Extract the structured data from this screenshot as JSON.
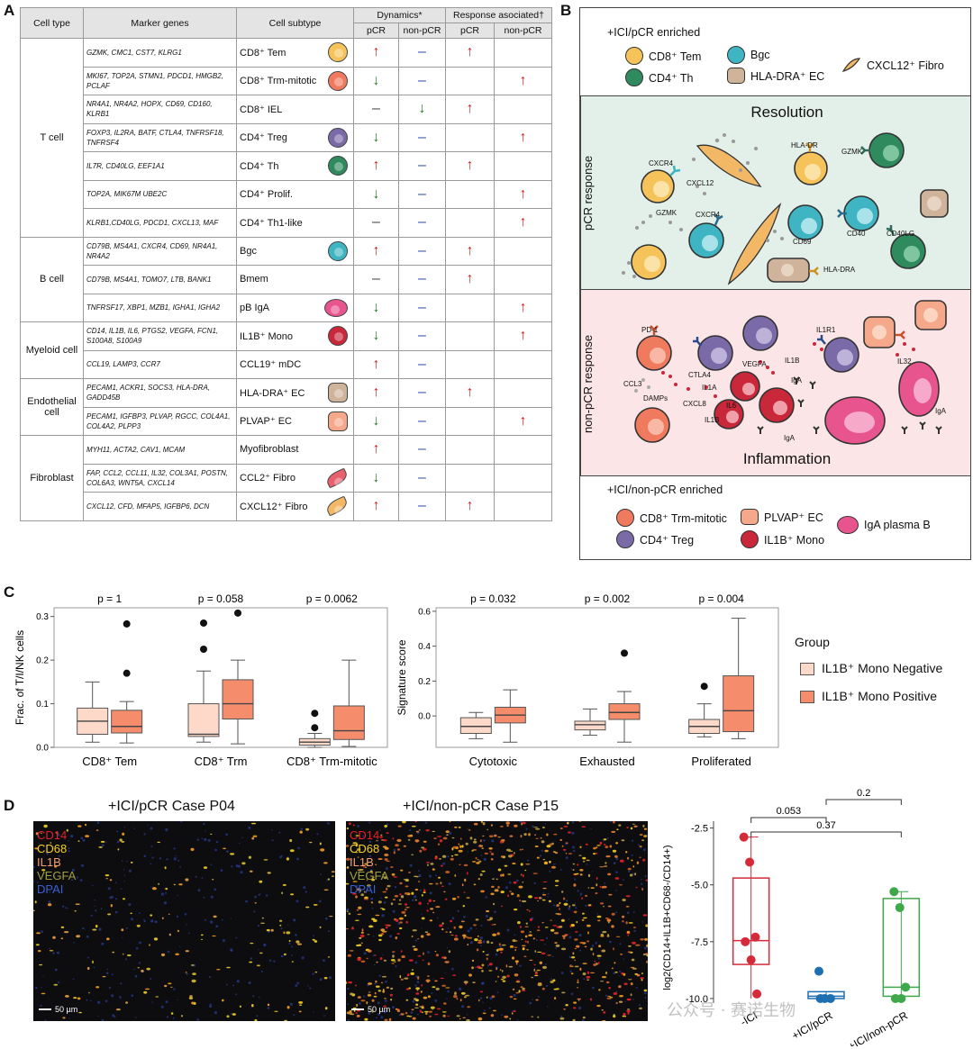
{
  "panelA": {
    "letter": "A",
    "header": {
      "cell_type": "Cell type",
      "marker_genes": "Marker genes",
      "cell_subtype": "Cell subtype",
      "dynamics": "Dynamics*",
      "response": "Response asociated†",
      "pcr": "pCR",
      "non_pcr": "non-pCR"
    },
    "groups": [
      {
        "type": "T cell",
        "rows": [
          {
            "markers": "GZMK, CMC1, CST7, KLRG1",
            "subtype": "CD8⁺ Tem",
            "icon": "cd8-tem-cell-icon",
            "color": "#f6c35b",
            "dyn_pcr": "↑",
            "dyn_npcr": "–",
            "res_pcr": "↑",
            "res_npcr": ""
          },
          {
            "markers": "MKI67, TOP2A, STMN1, PDCD1, HMGB2, PCLAF",
            "subtype": "CD8⁺ Trm-mitotic",
            "icon": "cd8-trm-mitotic-cell-icon",
            "color": "#f07a5e",
            "dyn_pcr": "↓",
            "dyn_npcr": "–",
            "res_pcr": "",
            "res_npcr": "↑"
          },
          {
            "markers": "NR4A1, NR4A2, HOPX, CD69, CD160, KLRB1",
            "subtype": "CD8⁺ IEL",
            "icon": "",
            "color": "",
            "dyn_pcr": "–",
            "dyn_npcr": "↓",
            "res_pcr": "↑",
            "res_npcr": ""
          },
          {
            "markers": "FOXP3, IL2RA, BATF, CTLA4, TNFRSF18, TNFRSF4",
            "subtype": "CD4⁺ Treg",
            "icon": "cd4-treg-cell-icon",
            "color": "#7a6aa8",
            "dyn_pcr": "↓",
            "dyn_npcr": "–",
            "res_pcr": "",
            "res_npcr": "↑"
          },
          {
            "markers": "IL7R, CD40LG, EEF1A1",
            "subtype": "CD4⁺ Th",
            "icon": "cd4-th-cell-icon",
            "color": "#2f8a5e",
            "dyn_pcr": "↑",
            "dyn_npcr": "–",
            "res_pcr": "↑",
            "res_npcr": ""
          },
          {
            "markers": "TOP2A, MIK67M UBE2C",
            "subtype": "CD4⁺ Prolif.",
            "icon": "",
            "color": "",
            "dyn_pcr": "↓",
            "dyn_npcr": "–",
            "res_pcr": "",
            "res_npcr": "↑"
          },
          {
            "markers": "KLRB1,CD40LG, PDCD1, CXCL13, MAF",
            "subtype": "CD4⁺ Th1-like",
            "icon": "",
            "color": "",
            "dyn_pcr": "–",
            "dyn_npcr": "–",
            "res_pcr": "",
            "res_npcr": "↑"
          }
        ]
      },
      {
        "type": "B cell",
        "rows": [
          {
            "markers": "CD79B, MS4A1, CXCR4, CD69, NR4A1, NR4A2",
            "subtype": "Bgc",
            "icon": "bgc-cell-icon",
            "color": "#3fb5c4",
            "dyn_pcr": "↑",
            "dyn_npcr": "–",
            "res_pcr": "↑",
            "res_npcr": ""
          },
          {
            "markers": "CD79B, MS4A1, TOMO7, LTB, BANK1",
            "subtype": "Bmem",
            "icon": "",
            "color": "",
            "dyn_pcr": "–",
            "dyn_npcr": "–",
            "res_pcr": "↑",
            "res_npcr": ""
          },
          {
            "markers": "TNFRSF17, XBP1, MZB1, IGHA1, IGHA2",
            "subtype": "pB IgA",
            "icon": "pb-iga-cell-icon",
            "color": "#e8558e",
            "dyn_pcr": "↓",
            "dyn_npcr": "–",
            "res_pcr": "",
            "res_npcr": "↑"
          }
        ]
      },
      {
        "type": "Myeloid cell",
        "rows": [
          {
            "markers": "CD14, IL1B, IL6, PTGS2, VEGFA, FCN1, S100A8, S100A9",
            "subtype": "IL1B⁺ Mono",
            "icon": "il1b-mono-cell-icon",
            "color": "#c8283a",
            "dyn_pcr": "↓",
            "dyn_npcr": "–",
            "res_pcr": "",
            "res_npcr": "↑"
          },
          {
            "markers": "CCL19, LAMP3, CCR7",
            "subtype": "CCL19⁺ mDC",
            "icon": "",
            "color": "",
            "dyn_pcr": "↑",
            "dyn_npcr": "–",
            "res_pcr": "",
            "res_npcr": ""
          }
        ]
      },
      {
        "type": "Endothelial cell",
        "rows": [
          {
            "markers": "PECAM1, ACKR1, SOCS3, HLA-DRA, GADD45B",
            "subtype": "HLA-DRA⁺ EC",
            "icon": "hla-dra-ec-cell-icon",
            "color": "#cfb39a",
            "dyn_pcr": "↑",
            "dyn_npcr": "–",
            "res_pcr": "↑",
            "res_npcr": ""
          },
          {
            "markers": "PECAM1, IGFBP3, PLVAP, RGCC, COL4A1, COL4A2, PLPP3",
            "subtype": "PLVAP⁺ EC",
            "icon": "plvap-ec-cell-icon",
            "color": "#f6a88a",
            "dyn_pcr": "↓",
            "dyn_npcr": "–",
            "res_pcr": "",
            "res_npcr": "↑"
          }
        ]
      },
      {
        "type": "Fibroblast",
        "rows": [
          {
            "markers": "MYH11, ACTA2, CAV1, MCAM",
            "subtype": "Myofibroblast",
            "icon": "",
            "color": "",
            "dyn_pcr": "↑",
            "dyn_npcr": "–",
            "res_pcr": "",
            "res_npcr": ""
          },
          {
            "markers": "FAP, CCL2, CCL11, IL32, COL3A1, POSTN, COL6A3, WNT5A, CXCL14",
            "subtype": "CCL2⁺ Fibro",
            "icon": "ccl2-fibro-cell-icon",
            "color": "#e8606e",
            "dyn_pcr": "↓",
            "dyn_npcr": "–",
            "res_pcr": "",
            "res_npcr": ""
          },
          {
            "markers": "CXCL12, CFD, MFAP5, IGFBP6, DCN",
            "subtype": "CXCL12⁺ Fibro",
            "icon": "cxcl12-fibro-cell-icon",
            "color": "#f2b866",
            "dyn_pcr": "↑",
            "dyn_npcr": "–",
            "res_pcr": "↑",
            "res_npcr": ""
          }
        ]
      }
    ]
  },
  "panelB": {
    "letter": "B",
    "top_legend_title": "+ICI/pCR enriched",
    "top_legend": [
      {
        "label": "CD8⁺ Tem",
        "color": "#f6c35b"
      },
      {
        "label": "Bgc",
        "color": "#3fb5c4"
      },
      {
        "label": "CXCL12⁺ Fibro",
        "color": "#f2b866"
      },
      {
        "label": "CD4⁺ Th",
        "color": "#2f8a5e"
      },
      {
        "label": "HLA-DRA⁺ EC",
        "color": "#cfb39a"
      }
    ],
    "pcr_label": "pCR response",
    "resolution": "Resolution",
    "nonpcr_label": "non-pCR response",
    "inflammation": "Inflammation",
    "bottom_legend_title": "+ICI/non-pCR enriched",
    "bottom_legend": [
      {
        "label": "CD8⁺ Trm-mitotic",
        "color": "#f07a5e"
      },
      {
        "label": "PLVAP⁺ EC",
        "color": "#f6a88a"
      },
      {
        "label": "IgA plasma B",
        "color": "#e8558e"
      },
      {
        "label": "CD4⁺ Treg",
        "color": "#7a6aa8"
      },
      {
        "label": "IL1B⁺ Mono",
        "color": "#c8283a"
      }
    ],
    "pcr_labels": [
      "HLA-DR",
      "CXCR4",
      "CXCL12",
      "GZMK",
      "GZMK",
      "CXCR4",
      "CD69",
      "CD40",
      "CD40LG",
      "HLA-DRA"
    ],
    "npcr_labels": [
      "PD-1",
      "IL1R1",
      "VEGFA",
      "CTLA4",
      "IL1A",
      "IL1B",
      "IL32",
      "IgA",
      "IgA",
      "IgA",
      "CCL3",
      "DAMPs",
      "CXCL8",
      "IL6",
      "IL1B"
    ]
  },
  "panelC": {
    "letter": "C",
    "legend_title": "Group",
    "legend": [
      {
        "label": "IL1B⁺ Mono Negative",
        "color": "#fcd9c9"
      },
      {
        "label": "IL1B⁺ Mono Positive",
        "color": "#f58c6c"
      }
    ],
    "chart_data": [
      {
        "type": "box",
        "ylabel": "Frac. of T/I/NK cells",
        "ylim": [
          0,
          0.32
        ],
        "yticks": [
          "0.0",
          "0.1",
          "0.2",
          "0.3"
        ],
        "categories": [
          "CD8⁺ Tem",
          "CD8⁺ Trm",
          "CD8⁺ Trm-mitotic"
        ],
        "pvalues": [
          "p = 1",
          "p = 0.058",
          "p = 0.0062"
        ],
        "series": [
          {
            "name": "IL1B⁺ Mono Negative",
            "boxes": [
              {
                "q1": 0.03,
                "median": 0.06,
                "q3": 0.09,
                "wmin": 0.012,
                "wmax": 0.15,
                "outliers": []
              },
              {
                "q1": 0.025,
                "median": 0.03,
                "q3": 0.1,
                "wmin": 0.012,
                "wmax": 0.175,
                "outliers": [
                  0.225,
                  0.285
                ]
              },
              {
                "q1": 0.005,
                "median": 0.012,
                "q3": 0.02,
                "wmin": 0.0,
                "wmax": 0.032,
                "outliers": [
                  0.045,
                  0.078
                ]
              }
            ]
          },
          {
            "name": "IL1B⁺ Mono Positive",
            "boxes": [
              {
                "q1": 0.033,
                "median": 0.048,
                "q3": 0.085,
                "wmin": 0.01,
                "wmax": 0.105,
                "outliers": [
                  0.17,
                  0.283
                ]
              },
              {
                "q1": 0.065,
                "median": 0.1,
                "q3": 0.155,
                "wmin": 0.008,
                "wmax": 0.2,
                "outliers": [
                  0.308
                ]
              },
              {
                "q1": 0.018,
                "median": 0.038,
                "q3": 0.095,
                "wmin": 0.002,
                "wmax": 0.2,
                "outliers": []
              }
            ]
          }
        ]
      },
      {
        "type": "box",
        "ylabel": "Signature score",
        "ylim": [
          -0.18,
          0.62
        ],
        "yticks": [
          "0.0",
          "0.2",
          "0.4",
          "0.6"
        ],
        "categories": [
          "Cytotoxic",
          "Exhausted",
          "Proliferated"
        ],
        "pvalues": [
          "p = 0.032",
          "p = 0.002",
          "p = 0.004"
        ],
        "series": [
          {
            "name": "IL1B⁺ Mono Negative",
            "boxes": [
              {
                "q1": -0.1,
                "median": -0.06,
                "q3": -0.01,
                "wmin": -0.13,
                "wmax": 0.02,
                "outliers": []
              },
              {
                "q1": -0.08,
                "median": -0.05,
                "q3": -0.03,
                "wmin": -0.11,
                "wmax": 0.04,
                "outliers": []
              },
              {
                "q1": -0.1,
                "median": -0.06,
                "q3": -0.02,
                "wmin": -0.12,
                "wmax": 0.07,
                "outliers": [
                  0.17
                ]
              }
            ]
          },
          {
            "name": "IL1B⁺ Mono Positive",
            "boxes": [
              {
                "q1": -0.04,
                "median": 0.005,
                "q3": 0.05,
                "wmin": -0.15,
                "wmax": 0.15,
                "outliers": []
              },
              {
                "q1": -0.02,
                "median": 0.02,
                "q3": 0.07,
                "wmin": -0.15,
                "wmax": 0.14,
                "outliers": [
                  0.36
                ]
              },
              {
                "q1": -0.09,
                "median": 0.03,
                "q3": 0.23,
                "wmin": -0.13,
                "wmax": 0.56,
                "outliers": []
              }
            ]
          }
        ]
      }
    ]
  },
  "panelD": {
    "letter": "D",
    "micro_left_title": "+ICI/pCR Case P04",
    "micro_right_title": "+ICI/non-pCR Case P15",
    "channels": [
      {
        "label": "CD14",
        "color": "#e8202a"
      },
      {
        "label": "CD68",
        "color": "#f5d020"
      },
      {
        "label": "IL1B",
        "color": "#f5a070"
      },
      {
        "label": "VEGFA",
        "color": "#9ea040"
      },
      {
        "label": "DPAI",
        "color": "#3b5fd0"
      }
    ],
    "scalebar": "50 µm",
    "chart_data": {
      "type": "box",
      "ylabel": "log2(CD14+IL1B+CD68-/CD14+)",
      "ylim": [
        -10.2,
        -2.2
      ],
      "yticks": [
        "-2.5",
        "-5.0",
        "-7.5",
        "-10.0"
      ],
      "categories": [
        "-ICI",
        "+ICI/pCR",
        "+ICI/non-pCR"
      ],
      "colors": [
        "#d42a3a",
        "#1f6fb0",
        "#3fa84a"
      ],
      "boxes": [
        {
          "q1": -8.5,
          "median": -7.45,
          "q3": -4.7,
          "wmin": -10.0,
          "wmax": -2.9,
          "points": [
            -2.9,
            -4.0,
            -7.3,
            -7.5,
            -8.3,
            -9.8
          ]
        },
        {
          "q1": -10.0,
          "median": -9.9,
          "q3": -9.7,
          "wmin": -10.0,
          "wmax": -9.7,
          "points": [
            -8.8,
            -10.0,
            -10.0,
            -10.0
          ]
        },
        {
          "q1": -9.9,
          "median": -9.5,
          "q3": -5.6,
          "wmin": -10.0,
          "wmax": -5.3,
          "points": [
            -5.3,
            -6.0,
            -9.5,
            -10.0,
            -10.0
          ]
        }
      ],
      "brackets": [
        {
          "label": "0.053",
          "from": 0,
          "to": 1
        },
        {
          "label": "0.2",
          "from": 1,
          "to": 2
        },
        {
          "label": "0.37",
          "from": 0,
          "to": 2
        }
      ]
    }
  },
  "watermark": "公众号 · 赛诺生物"
}
